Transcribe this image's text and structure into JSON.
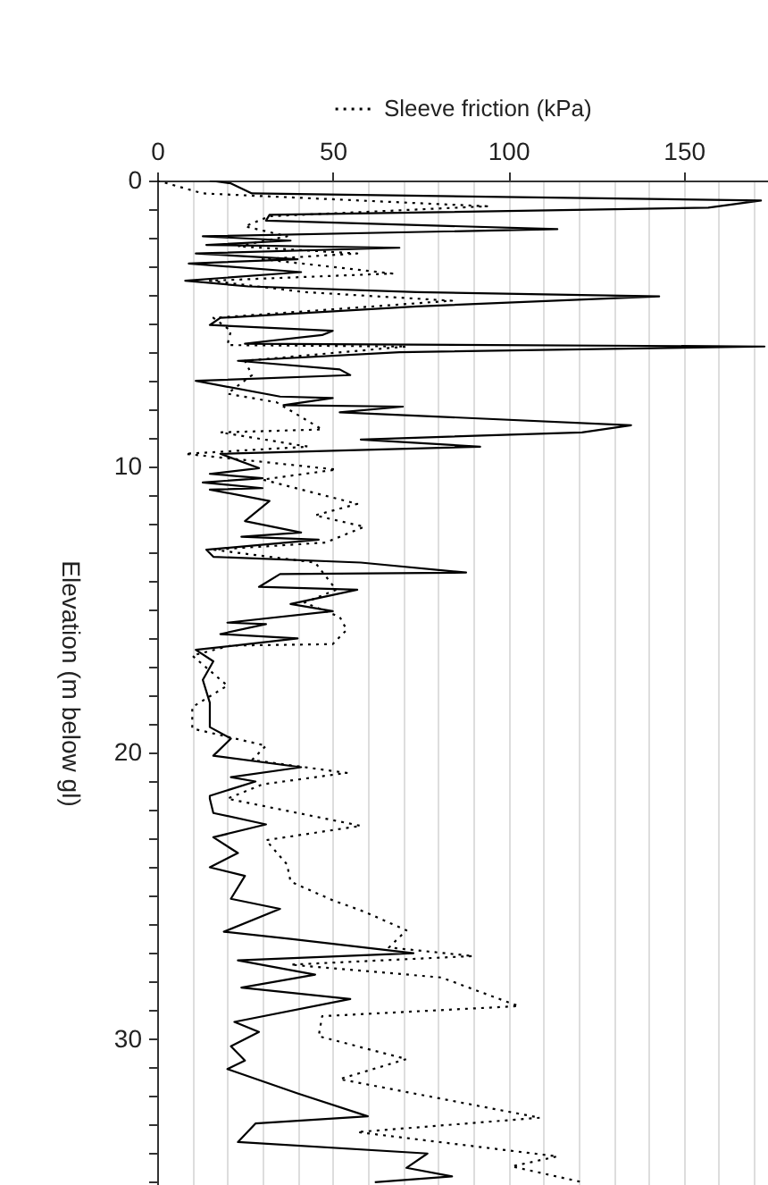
{
  "chart_data": {
    "type": "line",
    "orientation": "horizontal",
    "ylabel": "Elevation (m below gl)",
    "legend": "top",
    "grid": "x",
    "xlim": [
      0,
      174
    ],
    "xticks": [
      0,
      {
        "value": 10,
        "label": null
      },
      {
        "value": 20,
        "label": null
      },
      {
        "value": 30,
        "label": null
      },
      {
        "value": 40,
        "label": null
      },
      50,
      {
        "value": 60,
        "label": null
      },
      {
        "value": 70,
        "label": null
      },
      {
        "value": 80,
        "label": null
      },
      {
        "value": 90,
        "label": null
      },
      100,
      {
        "value": 110,
        "label": null
      },
      {
        "value": 120,
        "label": null
      },
      {
        "value": 130,
        "label": null
      },
      {
        "value": 140,
        "label": null
      },
      150,
      {
        "value": 160,
        "label": null
      },
      {
        "value": 170,
        "label": null
      }
    ],
    "ylim": [
      35.1,
      0
    ],
    "yticks": [
      0,
      {
        "value": 1,
        "label": null
      },
      {
        "value": 2,
        "label": null
      },
      {
        "value": 3,
        "label": null
      },
      {
        "value": 4,
        "label": null
      },
      {
        "value": 5,
        "label": null
      },
      {
        "value": 6,
        "label": null
      },
      {
        "value": 7,
        "label": null
      },
      {
        "value": 8,
        "label": null
      },
      {
        "value": 9,
        "label": null
      },
      10,
      {
        "value": 11,
        "label": null
      },
      {
        "value": 12,
        "label": null
      },
      {
        "value": 13,
        "label": null
      },
      {
        "value": 14,
        "label": null
      },
      {
        "value": 15,
        "label": null
      },
      {
        "value": 16,
        "label": null
      },
      {
        "value": 17,
        "label": null
      },
      {
        "value": 18,
        "label": null
      },
      {
        "value": 19,
        "label": null
      },
      20,
      {
        "value": 21,
        "label": null
      },
      {
        "value": 22,
        "label": null
      },
      {
        "value": 23,
        "label": null
      },
      {
        "value": 24,
        "label": null
      },
      {
        "value": 25,
        "label": null
      },
      {
        "value": 26,
        "label": null
      },
      {
        "value": 27,
        "label": null
      },
      {
        "value": 28,
        "label": null
      },
      {
        "value": 29,
        "label": null
      },
      30,
      {
        "value": 31,
        "label": null
      },
      {
        "value": 32,
        "label": null
      },
      {
        "value": 33,
        "label": null
      },
      {
        "value": 34,
        "label": null
      },
      {
        "value": 35,
        "label": null
      }
    ],
    "series": [
      {
        "color": "#000000",
        "line_style": "solid",
        "x": [
          0,
          0.1,
          0.45,
          0.7,
          0.95,
          1.2,
          1.4,
          1.7,
          1.95,
          2.1,
          2.25,
          2.35,
          2.55,
          2.75,
          2.9,
          3.2,
          3.5,
          3.7,
          3.9,
          4.05,
          4.4,
          4.8,
          5.05,
          5.25,
          5.4,
          5.7,
          5.8,
          6.0,
          6.3,
          6.6,
          6.8,
          7.0,
          7.55,
          7.6,
          7.85,
          7.9,
          8.1,
          8.55,
          8.8,
          9.05,
          9.3,
          9.55,
          10.05,
          10.25,
          10.4,
          10.55,
          10.75,
          10.8,
          11.2,
          11.9,
          12.3,
          12.45,
          12.55,
          12.9,
          13.15,
          13.35,
          13.7,
          13.75,
          14.2,
          14.3,
          14.8,
          15.05,
          15.45,
          15.5,
          15.85,
          16.0,
          16.4,
          16.8,
          17.45,
          18.25,
          19.1,
          19.5,
          20.1,
          20.5,
          20.85,
          21.0,
          21.5,
          21.6,
          22.1,
          22.5,
          22.95,
          23.5,
          24.0,
          24.3,
          25.1,
          25.45,
          26.25,
          26.5,
          27.0,
          27.25,
          27.75,
          28.2,
          28.6,
          29.4,
          29.75,
          30.25,
          30.75,
          31.05,
          31.9,
          32.7,
          32.95,
          33.6,
          34.0,
          34.5,
          34.8,
          35.0
        ],
        "values": [
          15,
          21,
          27,
          172,
          157,
          32,
          31,
          114,
          13,
          38,
          14,
          69,
          11,
          40,
          9,
          41,
          8,
          26,
          74,
          143,
          74,
          18,
          15,
          50,
          47,
          25,
          173,
          69,
          23,
          52,
          55,
          11,
          35,
          50,
          36,
          70,
          52,
          135,
          121,
          58,
          92,
          18,
          29,
          15,
          30,
          13,
          30,
          15,
          32,
          25,
          41,
          24,
          46,
          14,
          16,
          58,
          88,
          35,
          29,
          57,
          38,
          50,
          20,
          31,
          18,
          40,
          11,
          16,
          13,
          15,
          15,
          21,
          16,
          41,
          21,
          28,
          15,
          15,
          16,
          31,
          16,
          23,
          15,
          25,
          21,
          35,
          19,
          38,
          73,
          23,
          45,
          24,
          55,
          22,
          29,
          21,
          25,
          20,
          40,
          60,
          28,
          23,
          77,
          71,
          84,
          62
        ]
      },
      {
        "name": "Sleeve friction (kPa)",
        "color": "#000000",
        "line_style": "dotted",
        "x": [
          0,
          0.45,
          0.9,
          1.25,
          1.6,
          1.95,
          2.3,
          2.55,
          2.75,
          3.25,
          3.5,
          3.9,
          4.2,
          4.8,
          5.25,
          5.75,
          5.8,
          6.3,
          6.8,
          7.45,
          7.75,
          8.7,
          8.8,
          9.3,
          9.55,
          10.1,
          10.45,
          11.3,
          11.7,
          12.1,
          12.65,
          12.9,
          13.35,
          14.3,
          14.75,
          15.25,
          15.7,
          16.2,
          16.25,
          16.6,
          17.65,
          18.4,
          19.15,
          19.75,
          20.25,
          20.7,
          21.1,
          21.6,
          22.55,
          23.05,
          23.9,
          24.5,
          25.15,
          25.55,
          26.2,
          26.8,
          27.1,
          27.4,
          27.85,
          28.85,
          29.2,
          29.9,
          30.7,
          31.4,
          32.75,
          33.25,
          34.1,
          34.45,
          35.0
        ],
        "values": [
          0,
          13,
          94,
          32,
          25,
          37,
          23,
          57,
          30,
          67,
          15,
          42,
          84,
          16,
          21,
          20,
          71,
          25,
          27,
          20,
          34,
          47,
          18,
          43,
          8,
          51,
          30,
          57,
          45,
          59,
          48,
          16,
          45,
          51,
          42,
          52,
          54,
          50,
          21,
          10,
          20,
          10,
          10,
          31,
          27,
          54,
          30,
          20,
          58,
          31,
          37,
          38,
          50,
          59,
          71,
          66,
          90,
          38,
          81,
          103,
          47,
          46,
          71,
          52,
          109,
          57,
          114,
          101,
          121
        ]
      }
    ]
  }
}
